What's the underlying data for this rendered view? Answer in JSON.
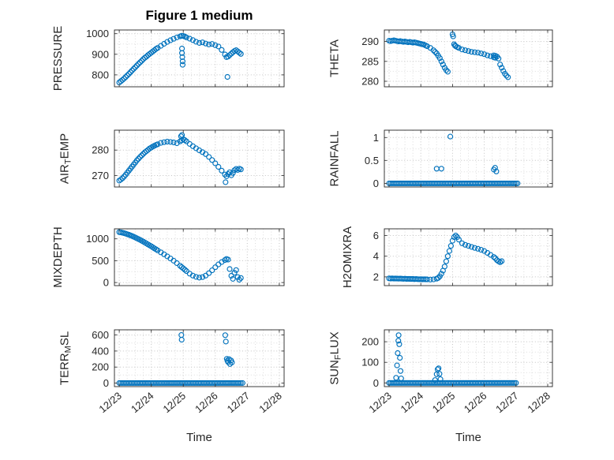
{
  "title": "Figure 1 medium",
  "xlabel": "Time",
  "colors": {
    "marker": "#0072BD",
    "axis": "#262626",
    "grid_major": "#c3c3c3",
    "grid_minor": "#dddddd",
    "text": "#262626",
    "background": "#ffffff"
  },
  "x_axis": {
    "ticks": [
      0,
      1,
      2,
      3,
      4,
      5
    ],
    "labels": [
      "12/23",
      "12/24",
      "12/25",
      "12/26",
      "12/27",
      "12/28"
    ],
    "lim": [
      -0.15,
      5.15
    ],
    "minor_step": 0.25
  },
  "chart_data": [
    {
      "name": "PRESSURE",
      "type": "scatter",
      "grid": {
        "row": 0,
        "col": 0
      },
      "ylabel": [
        {
          "t": "PRESSURE"
        }
      ],
      "yticks": [
        800,
        900,
        1000
      ],
      "ylim": [
        742,
        1018
      ],
      "x": [
        0,
        0.05,
        0.1,
        0.15,
        0.2,
        0.25,
        0.3,
        0.35,
        0.4,
        0.45,
        0.5,
        0.55,
        0.6,
        0.65,
        0.7,
        0.75,
        0.8,
        0.85,
        0.9,
        0.95,
        1,
        1.05,
        1.1,
        1.15,
        1.2,
        1.3,
        1.4,
        1.5,
        1.6,
        1.7,
        1.8,
        1.9,
        1.95,
        2,
        2.05,
        2.1,
        2.2,
        2.3,
        2.4,
        2.5,
        2.6,
        2.7,
        2.8,
        2.9,
        3,
        3.1,
        3.2,
        3.3,
        3.35,
        3.4,
        3.45,
        3.5,
        3.55,
        3.6,
        3.65,
        3.7,
        3.75,
        3.8,
        1.96,
        1.96,
        1.97,
        1.98,
        1.98,
        3.38
      ],
      "y": [
        763,
        769,
        775,
        782,
        789,
        797,
        805,
        813,
        821,
        829,
        837,
        845,
        853,
        861,
        868,
        876,
        883,
        889,
        896,
        902,
        908,
        914,
        920,
        926,
        931,
        941,
        951,
        960,
        968,
        975,
        982,
        987,
        990,
        989,
        986,
        982,
        976,
        969,
        961,
        955,
        958,
        952,
        948,
        950,
        944,
        938,
        921,
        899,
        886,
        889,
        896,
        903,
        910,
        916,
        920,
        914,
        908,
        902,
        928,
        906,
        886,
        866,
        849,
        790
      ]
    },
    {
      "name": "THETA",
      "type": "scatter",
      "grid": {
        "row": 0,
        "col": 1
      },
      "ylabel": [
        {
          "t": "THETA"
        }
      ],
      "yticks": [
        280,
        285,
        290
      ],
      "ylim": [
        278.6,
        292.9
      ],
      "x": [
        0,
        0.05,
        0.1,
        0.15,
        0.2,
        0.25,
        0.3,
        0.35,
        0.4,
        0.45,
        0.5,
        0.55,
        0.6,
        0.65,
        0.7,
        0.75,
        0.8,
        0.85,
        0.9,
        0.95,
        1,
        1.05,
        1.1,
        1.15,
        1.2,
        1.3,
        1.4,
        1.45,
        1.5,
        1.55,
        1.6,
        1.65,
        1.7,
        1.75,
        1.8,
        1.85,
        2,
        2.02,
        2.05,
        2.08,
        2.1,
        2.15,
        2.2,
        2.3,
        2.4,
        2.5,
        2.6,
        2.7,
        2.8,
        2.9,
        3,
        3.1,
        3.2,
        3.3,
        3.3,
        3.35,
        3.35,
        3.4,
        3.45,
        3.5,
        3.55,
        3.6,
        3.65,
        3.7,
        3.75
      ],
      "y": [
        290.2,
        290.1,
        290.2,
        290.3,
        290.2,
        290.1,
        290,
        290.1,
        290,
        289.9,
        290,
        289.9,
        289.8,
        289.9,
        289.8,
        289.7,
        289.8,
        289.7,
        289.6,
        289.5,
        289.4,
        289.3,
        289.2,
        289,
        288.8,
        288.4,
        287.8,
        287.4,
        287,
        286.4,
        285.8,
        285,
        284.2,
        283.4,
        282.8,
        282.4,
        291.8,
        291.3,
        289.3,
        289,
        288.8,
        288.6,
        288.4,
        288,
        287.8,
        287.6,
        287.4,
        287.3,
        287.2,
        287,
        286.8,
        286.5,
        286.3,
        286.5,
        286,
        286.4,
        285.9,
        286.2,
        285.7,
        284.2,
        283.4,
        282.6,
        281.9,
        281.4,
        281
      ]
    },
    {
      "name": "AIR_TEMP",
      "type": "scatter",
      "grid": {
        "row": 1,
        "col": 0
      },
      "ylabel": [
        {
          "t": "AIR"
        },
        {
          "t": "T",
          "sub": true
        },
        {
          "t": "EMP"
        }
      ],
      "yticks": [
        270,
        280
      ],
      "ylim": [
        265.5,
        287.8
      ],
      "x": [
        0,
        0.05,
        0.1,
        0.15,
        0.2,
        0.25,
        0.3,
        0.35,
        0.4,
        0.45,
        0.5,
        0.55,
        0.6,
        0.65,
        0.7,
        0.75,
        0.8,
        0.85,
        0.9,
        0.95,
        1,
        1.05,
        1.1,
        1.15,
        1.2,
        1.3,
        1.4,
        1.5,
        1.6,
        1.7,
        1.8,
        1.9,
        1.95,
        2,
        2.05,
        2.1,
        2.2,
        2.3,
        2.4,
        2.5,
        2.6,
        2.7,
        2.8,
        2.9,
        3,
        3.1,
        3.2,
        3.3,
        3.35,
        3.4,
        3.45,
        3.5,
        3.55,
        3.6,
        3.65,
        3.7,
        3.75,
        3.8,
        1.93,
        1.96,
        3.32
      ],
      "y": [
        268,
        268.4,
        268.9,
        269.6,
        270.3,
        271.1,
        271.9,
        272.7,
        273.5,
        274.3,
        275.1,
        275.9,
        276.6,
        277.3,
        277.9,
        278.5,
        279.1,
        279.6,
        280.1,
        280.6,
        281,
        281.4,
        281.7,
        282,
        282.3,
        282.8,
        283.1,
        283.3,
        283.2,
        283,
        282.7,
        283.4,
        283.8,
        284.2,
        283.9,
        283.4,
        282.4,
        281.5,
        280.7,
        279.9,
        279.2,
        278.4,
        277.3,
        276.1,
        274.8,
        273.4,
        271.9,
        270.4,
        269.7,
        270.6,
        271.3,
        270.1,
        271,
        272.1,
        272.6,
        272.2,
        272.7,
        272.4,
        285.4,
        285.9,
        267.4
      ]
    },
    {
      "name": "RAINFALL",
      "type": "scatter",
      "grid": {
        "row": 1,
        "col": 1
      },
      "ylabel": [
        {
          "t": "RAINFALL"
        }
      ],
      "yticks": [
        0,
        0.5,
        1
      ],
      "ylim": [
        -0.08,
        1.16
      ],
      "baseline": {
        "start": 0,
        "end": 4.05,
        "step": 0.05,
        "value": 0
      },
      "x": [
        1.5,
        1.65,
        1.93,
        3.3,
        3.34,
        3.38
      ],
      "y": [
        0.32,
        0.32,
        1.02,
        0.3,
        0.34,
        0.26
      ]
    },
    {
      "name": "MIXDEPTH",
      "type": "scatter",
      "grid": {
        "row": 2,
        "col": 0
      },
      "ylabel": [
        {
          "t": "MIXDEPTH"
        }
      ],
      "yticks": [
        0,
        500,
        1000
      ],
      "ylim": [
        -70,
        1230
      ],
      "x": [
        0,
        0.05,
        0.1,
        0.15,
        0.2,
        0.25,
        0.3,
        0.35,
        0.4,
        0.45,
        0.5,
        0.55,
        0.6,
        0.65,
        0.7,
        0.75,
        0.8,
        0.85,
        0.9,
        0.95,
        1,
        1.05,
        1.1,
        1.15,
        1.2,
        1.3,
        1.4,
        1.5,
        1.6,
        1.7,
        1.8,
        1.9,
        1.95,
        2,
        2.05,
        2.1,
        2.2,
        2.3,
        2.4,
        2.5,
        2.6,
        2.7,
        2.8,
        2.9,
        3,
        3.1,
        3.2,
        3.3,
        3.35,
        3.4,
        3.45,
        3.5,
        3.55,
        3.6,
        3.65,
        3.7,
        3.75,
        3.8
      ],
      "y": [
        1155,
        1148,
        1140,
        1130,
        1119,
        1107,
        1094,
        1080,
        1065,
        1049,
        1032,
        1014,
        996,
        977,
        957,
        937,
        916,
        895,
        873,
        851,
        829,
        806,
        783,
        760,
        737,
        692,
        646,
        600,
        552,
        500,
        444,
        385,
        355,
        325,
        295,
        262,
        205,
        160,
        130,
        115,
        125,
        160,
        215,
        280,
        350,
        415,
        470,
        515,
        540,
        525,
        310,
        155,
        85,
        225,
        285,
        125,
        65,
        105
      ]
    },
    {
      "name": "H2OMIXRA",
      "type": "scatter",
      "grid": {
        "row": 2,
        "col": 1
      },
      "ylabel": [
        {
          "t": "H2OMIXRA"
        }
      ],
      "yticks": [
        2,
        4,
        6
      ],
      "ylim": [
        1.15,
        6.65
      ],
      "x": [
        0,
        0.05,
        0.1,
        0.15,
        0.2,
        0.25,
        0.3,
        0.35,
        0.4,
        0.45,
        0.5,
        0.55,
        0.6,
        0.65,
        0.7,
        0.75,
        0.8,
        0.85,
        0.9,
        0.95,
        1,
        1.05,
        1.1,
        1.15,
        1.2,
        1.3,
        1.4,
        1.5,
        1.55,
        1.6,
        1.65,
        1.7,
        1.75,
        1.8,
        1.85,
        1.9,
        1.95,
        2,
        2.05,
        2.1,
        2.15,
        2.2,
        2.3,
        2.4,
        2.5,
        2.6,
        2.7,
        2.8,
        2.9,
        3,
        3.1,
        3.2,
        3.3,
        3.35,
        3.4,
        3.45,
        3.5,
        3.55
      ],
      "y": [
        1.85,
        1.84,
        1.85,
        1.83,
        1.84,
        1.83,
        1.82,
        1.83,
        1.82,
        1.81,
        1.82,
        1.8,
        1.81,
        1.8,
        1.79,
        1.8,
        1.78,
        1.79,
        1.78,
        1.77,
        1.78,
        1.76,
        1.77,
        1.76,
        1.75,
        1.74,
        1.75,
        1.82,
        1.9,
        2.05,
        2.3,
        2.6,
        3,
        3.5,
        4,
        4.5,
        5,
        5.5,
        5.85,
        6,
        5.85,
        5.6,
        5.25,
        5.1,
        5,
        4.9,
        4.8,
        4.72,
        4.62,
        4.5,
        4.32,
        4.12,
        3.92,
        3.8,
        3.62,
        3.5,
        3.42,
        3.52
      ]
    },
    {
      "name": "TERR_MSL",
      "type": "scatter",
      "grid": {
        "row": 3,
        "col": 0
      },
      "ylabel": [
        {
          "t": "TERR"
        },
        {
          "t": "M",
          "sub": true
        },
        {
          "t": "SL"
        }
      ],
      "yticks": [
        0,
        200,
        400,
        600
      ],
      "ylim": [
        -45,
        665
      ],
      "baseline": {
        "start": 0,
        "end": 3.85,
        "step": 0.05,
        "value": 0
      },
      "x": [
        1.94,
        1.95,
        3.31,
        3.33,
        3.36,
        3.38,
        3.4,
        3.43,
        3.46,
        3.49,
        3.52
      ],
      "y": [
        600,
        542,
        598,
        518,
        302,
        278,
        262,
        298,
        238,
        282,
        258
      ]
    },
    {
      "name": "SUN_FLUX",
      "type": "scatter",
      "grid": {
        "row": 3,
        "col": 1
      },
      "ylabel": [
        {
          "t": "SUN"
        },
        {
          "t": "F",
          "sub": true
        },
        {
          "t": "LUX"
        }
      ],
      "yticks": [
        0,
        100,
        200
      ],
      "ylim": [
        -18,
        258
      ],
      "baseline": {
        "start": 0,
        "end": 4.0,
        "step": 0.05,
        "value": 0
      },
      "x": [
        0.22,
        0.25,
        0.27,
        0.29,
        0.3,
        0.32,
        0.34,
        0.36,
        0.38,
        1.45,
        1.5,
        1.53,
        1.56,
        1.59,
        1.62
      ],
      "y": [
        25,
        85,
        145,
        205,
        232,
        188,
        122,
        58,
        22,
        14,
        42,
        66,
        71,
        44,
        18
      ]
    }
  ]
}
